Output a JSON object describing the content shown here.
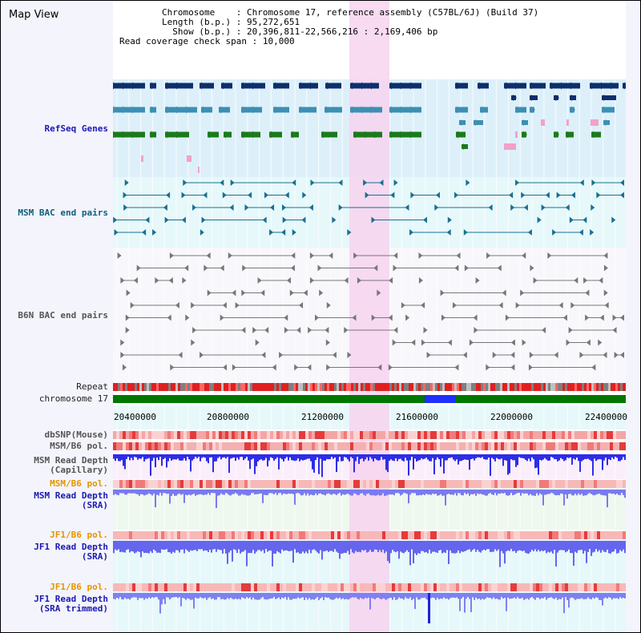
{
  "title": "Map View",
  "info": {
    "chromosome_label": "Chromosome",
    "chromosome_value": "Chromosome 17, reference assembly (C57BL/6J) (Build 37)",
    "length_label": "Length (b.p.)",
    "length_value": "95,272,651",
    "show_label": "Show (b.p.)",
    "show_value": "20,396,811-22,566,216 : 2,169,406 bp",
    "coverage_label": "Read coverage check span",
    "coverage_value": "10,000"
  },
  "tracks": {
    "refseq": "RefSeq Genes",
    "msm_bac": "MSM BAC end pairs",
    "b6n_bac": "B6N BAC end pairs",
    "repeat": "Repeat",
    "chrom": "chromosome 17",
    "dbsnp": "dbSNP(Mouse)",
    "msm_pol1": "MSM/B6 pol.",
    "msm_depth_cap_1": "MSM Read Depth",
    "msm_depth_cap_2": "(Capillary)",
    "msm_pol2": "MSM/B6 pol.",
    "msm_depth_sra_1": "MSM Read Depth",
    "msm_depth_sra_2": "(SRA)",
    "jf1_pol1": "JF1/B6 pol.",
    "jf1_depth_sra_1": "JF1 Read Depth",
    "jf1_depth_sra_2": "(SRA)",
    "jf1_pol2": "JF1/B6 pol.",
    "jf1_depth_trim_1": "JF1 Read Depth",
    "jf1_depth_trim_2": "(SRA trimmed)"
  },
  "axis": {
    "ticks": [
      "20400000",
      "20800000",
      "21200000",
      "21600000",
      "22000000",
      "22400000"
    ]
  },
  "colors": {
    "highlight": "#f7d3ef",
    "refseq_bg": "#ddf0fa",
    "navy": "#0d2f6c",
    "steel": "#3d8fb3",
    "green": "#1b7a1b",
    "pink": "#f4a0c8",
    "chrom_green": "#007800",
    "chrom_blue": "#1f2fff",
    "depth_blue": "#2a2aee"
  }
}
